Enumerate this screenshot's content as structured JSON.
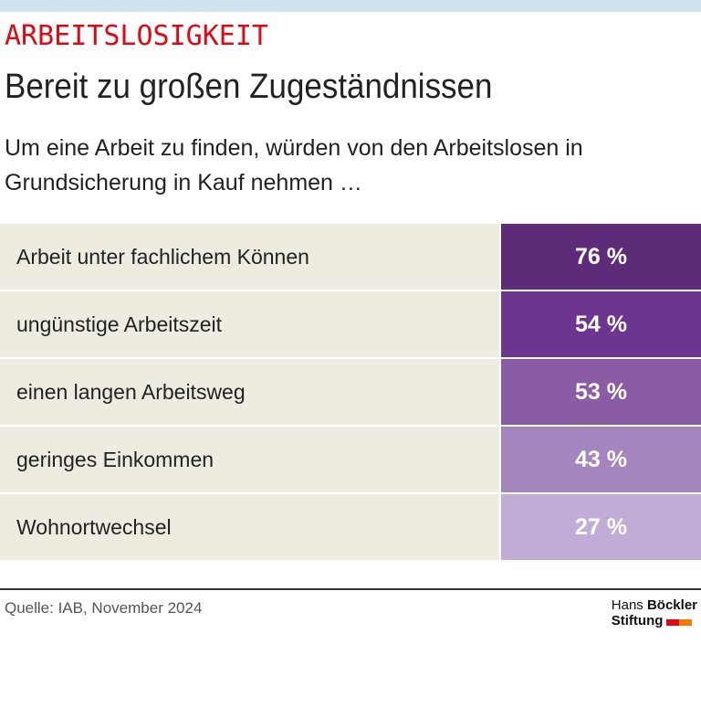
{
  "kicker": "ARBEITSLOSIGKEIT",
  "title": "Bereit zu großen Zugeständnissen",
  "subtitle": "Um eine Arbeit zu finden, würden von den Arbeitslosen in Grundsicherung in Kauf nehmen …",
  "chart_data": {
    "type": "table",
    "categories": [
      "Arbeit unter fachlichem Können",
      "ungünstige Arbeitszeit",
      "einen langen Arbeitsweg",
      "geringes Einkommen",
      "Wohnortwechsel"
    ],
    "values": [
      76,
      54,
      53,
      43,
      27
    ],
    "labels": [
      "76 %",
      "54 %",
      "53 %",
      "43 %",
      "27 %"
    ],
    "colors": [
      "#5e2b78",
      "#6e3590",
      "#8a5ca6",
      "#a585bd",
      "#c1acd7"
    ]
  },
  "source": "Quelle: IAB, November 2024",
  "logo": {
    "line1a": "Hans",
    "line1b": "Böckler",
    "line2": "Stiftung",
    "colors": [
      "#e30613",
      "#f07d00"
    ]
  }
}
